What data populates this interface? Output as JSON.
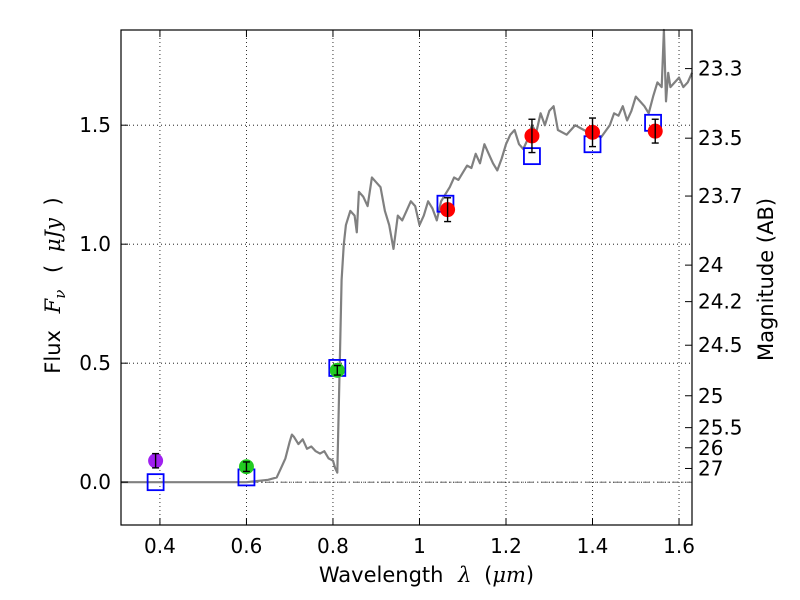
{
  "chart_data": {
    "type": "scatter",
    "title": "",
    "xlabel": {
      "prefix": "Wavelength",
      "symbol": "λ",
      "unit_open": "(",
      "unit": "μm",
      "unit_close": ")"
    },
    "ylabel": {
      "prefix": "Flux",
      "symbol": "F",
      "subscript": "ν",
      "unit_open": "(",
      "unit": "μJy",
      "unit_close": ")"
    },
    "y2label": "Magnitude (AB)",
    "xlim": [
      0.31,
      1.63
    ],
    "ylim": [
      -0.18,
      1.9
    ],
    "xticks": [
      {
        "value": 0.4,
        "label": "0.4"
      },
      {
        "value": 0.6,
        "label": "0.6"
      },
      {
        "value": 0.8,
        "label": "0.8"
      },
      {
        "value": 1.0,
        "label": "1"
      },
      {
        "value": 1.2,
        "label": "1.2"
      },
      {
        "value": 1.4,
        "label": "1.4"
      },
      {
        "value": 1.6,
        "label": "1.6"
      }
    ],
    "yticks": [
      {
        "value": 0.0,
        "label": "0.0"
      },
      {
        "value": 0.5,
        "label": "0.5"
      },
      {
        "value": 1.0,
        "label": "1.0"
      },
      {
        "value": 1.5,
        "label": "1.5"
      }
    ],
    "y2ticks": [
      {
        "mag": 23.3,
        "label": "23.3"
      },
      {
        "mag": 23.5,
        "label": "23.5"
      },
      {
        "mag": 23.7,
        "label": "23.7"
      },
      {
        "mag": 24.0,
        "label": "24"
      },
      {
        "mag": 24.2,
        "label": "24.2"
      },
      {
        "mag": 24.5,
        "label": "24.5"
      },
      {
        "mag": 25.0,
        "label": "25"
      },
      {
        "mag": 25.5,
        "label": "25.5"
      },
      {
        "mag": 26.0,
        "label": "26"
      },
      {
        "mag": 27.0,
        "label": "27"
      }
    ],
    "zero_line": 0.0,
    "grid": true,
    "series": [
      {
        "name": "model spectrum",
        "kind": "line",
        "color": "#808080",
        "x": [
          0.31,
          0.4,
          0.5,
          0.6,
          0.65,
          0.67,
          0.68,
          0.69,
          0.7,
          0.705,
          0.71,
          0.72,
          0.73,
          0.74,
          0.75,
          0.76,
          0.77,
          0.78,
          0.79,
          0.8,
          0.805,
          0.81,
          0.815,
          0.82,
          0.825,
          0.83,
          0.84,
          0.85,
          0.855,
          0.86,
          0.87,
          0.88,
          0.89,
          0.9,
          0.91,
          0.92,
          0.93,
          0.94,
          0.95,
          0.96,
          0.97,
          0.98,
          0.99,
          1.0,
          1.01,
          1.02,
          1.03,
          1.04,
          1.05,
          1.06,
          1.07,
          1.08,
          1.09,
          1.1,
          1.11,
          1.12,
          1.13,
          1.14,
          1.15,
          1.16,
          1.17,
          1.18,
          1.19,
          1.2,
          1.21,
          1.22,
          1.23,
          1.24,
          1.25,
          1.26,
          1.27,
          1.28,
          1.29,
          1.3,
          1.31,
          1.32,
          1.34,
          1.36,
          1.38,
          1.4,
          1.42,
          1.44,
          1.45,
          1.46,
          1.47,
          1.48,
          1.49,
          1.5,
          1.51,
          1.52,
          1.53,
          1.54,
          1.55,
          1.56,
          1.565,
          1.57,
          1.575,
          1.58,
          1.59,
          1.6,
          1.61,
          1.62,
          1.63
        ],
        "y": [
          0.0,
          0.0,
          0.0,
          0.0,
          0.01,
          0.02,
          0.06,
          0.1,
          0.17,
          0.2,
          0.19,
          0.16,
          0.18,
          0.14,
          0.15,
          0.13,
          0.12,
          0.13,
          0.1,
          0.09,
          0.06,
          0.04,
          0.45,
          0.85,
          1.0,
          1.08,
          1.14,
          1.12,
          1.05,
          1.22,
          1.2,
          1.16,
          1.28,
          1.26,
          1.24,
          1.14,
          1.08,
          0.98,
          1.12,
          1.1,
          1.14,
          1.18,
          1.16,
          1.08,
          1.12,
          1.18,
          1.15,
          1.1,
          1.18,
          1.21,
          1.24,
          1.28,
          1.27,
          1.3,
          1.33,
          1.32,
          1.38,
          1.34,
          1.42,
          1.38,
          1.34,
          1.31,
          1.36,
          1.42,
          1.46,
          1.48,
          1.42,
          1.4,
          1.44,
          1.5,
          1.47,
          1.55,
          1.5,
          1.56,
          1.58,
          1.48,
          1.46,
          1.5,
          1.48,
          1.46,
          1.45,
          1.5,
          1.55,
          1.54,
          1.58,
          1.52,
          1.56,
          1.62,
          1.6,
          1.58,
          1.55,
          1.62,
          1.68,
          1.66,
          1.9,
          1.6,
          1.72,
          1.66,
          1.68,
          1.7,
          1.66,
          1.68,
          1.72
        ]
      },
      {
        "name": "model photometry",
        "kind": "open-square",
        "color": "#0000ff",
        "x": [
          0.39,
          0.6,
          0.81,
          1.06,
          1.26,
          1.4,
          1.54
        ],
        "y": [
          0.0,
          0.02,
          0.48,
          1.17,
          1.37,
          1.42,
          1.51
        ]
      },
      {
        "name": "violet band",
        "kind": "point",
        "color": "#a020f0",
        "x": [
          0.39
        ],
        "y": [
          0.09
        ],
        "yerr": [
          0.03
        ]
      },
      {
        "name": "green bands",
        "kind": "point",
        "color": "#22cc22",
        "x": [
          0.6,
          0.81
        ],
        "y": [
          0.065,
          0.47
        ],
        "yerr": [
          0.02,
          0.02
        ]
      },
      {
        "name": "red bands",
        "kind": "point",
        "color": "#ff0000",
        "x": [
          1.065,
          1.26,
          1.4,
          1.545
        ],
        "y": [
          1.145,
          1.455,
          1.47,
          1.475
        ],
        "yerr": [
          0.05,
          0.07,
          0.06,
          0.05
        ]
      }
    ]
  }
}
